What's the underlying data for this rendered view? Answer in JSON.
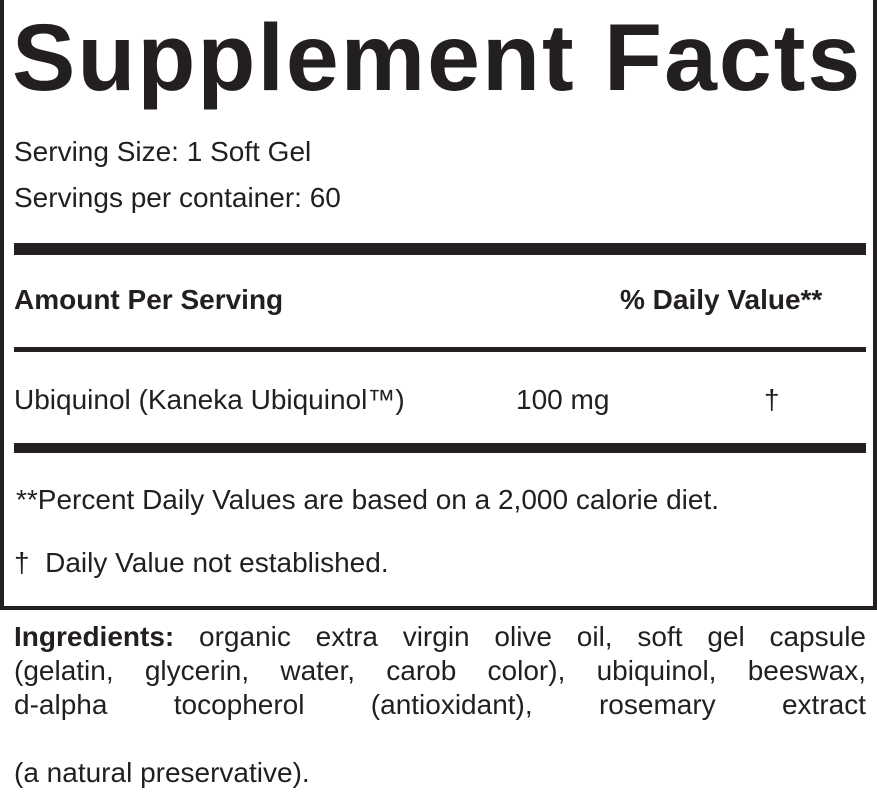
{
  "title": "Supplement Facts",
  "serving_size": "Serving Size: 1 Soft Gel",
  "servings_per_container": "Servings per container: 60",
  "header": {
    "amount": "Amount Per Serving",
    "daily_value": "% Daily Value**"
  },
  "rows": [
    {
      "name": "Ubiquinol (Kaneka Ubiquinol™)",
      "amount": "100 mg",
      "dv": "†"
    }
  ],
  "footnotes": [
    "**Percent Daily Values are based on a 2,000 calorie diet.",
    "†  Daily Value not established."
  ],
  "ingredients": {
    "label": "Ingredients:",
    "lines": [
      " organic extra virgin olive oil, soft gel capsule",
      "(gelatin, glycerin, water, carob color), ubiquinol, beeswax,",
      "d-alpha tocopherol (antioxidant), rosemary extract",
      "(a natural preservative)."
    ]
  }
}
